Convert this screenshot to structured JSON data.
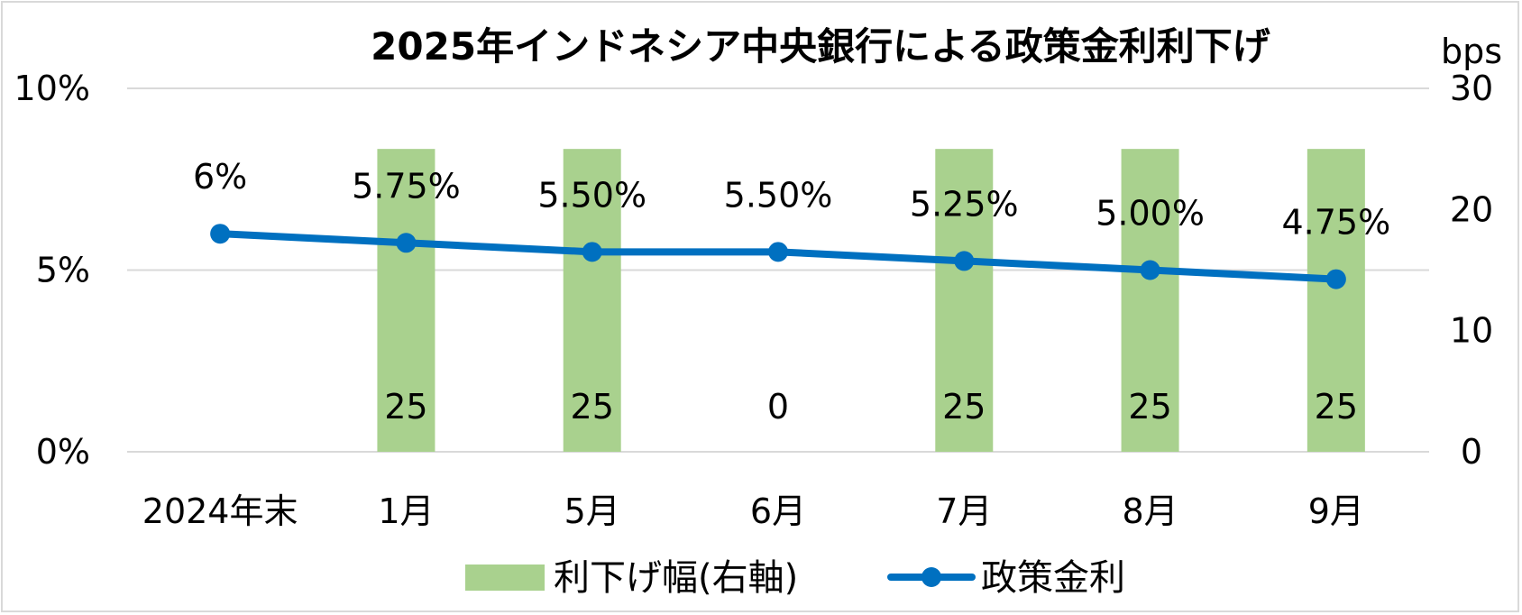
{
  "chart_data": {
    "type": "bar+line",
    "title": "2025年インドネシア中央銀行による政策金利利下げ",
    "categories": [
      "2024年末",
      "1月",
      "5月",
      "6月",
      "7月",
      "8月",
      "9月"
    ],
    "y_left": {
      "ylim": [
        0,
        10
      ],
      "ticks": [
        0,
        5,
        10
      ],
      "tick_labels": [
        "0%",
        "5%",
        "10%"
      ]
    },
    "y_right": {
      "unit": "bps",
      "ylim": [
        0,
        30
      ],
      "ticks": [
        0,
        10,
        20,
        30
      ],
      "tick_labels": [
        "0",
        "10",
        "20",
        "30"
      ]
    },
    "bar_series": {
      "name": "利下げ幅(右軸)",
      "axis": "right",
      "color": "#a9d18e",
      "values": [
        null,
        25,
        25,
        0,
        25,
        25,
        25
      ],
      "labels": [
        "",
        "25",
        "25",
        "0",
        "25",
        "25",
        "25"
      ],
      "bar_top_value": 25
    },
    "line_series": {
      "name": "政策金利",
      "axis": "left",
      "color": "#0070c0",
      "values": [
        6.0,
        5.75,
        5.5,
        5.5,
        5.25,
        5.0,
        4.75
      ],
      "labels": [
        "6%",
        "5.75%",
        "5.50%",
        "5.50%",
        "5.25%",
        "5.00%",
        "4.75%"
      ]
    },
    "grid": true,
    "legend_position": "bottom"
  },
  "colors": {
    "grid": "#d9d9d9",
    "text": "#000000"
  }
}
